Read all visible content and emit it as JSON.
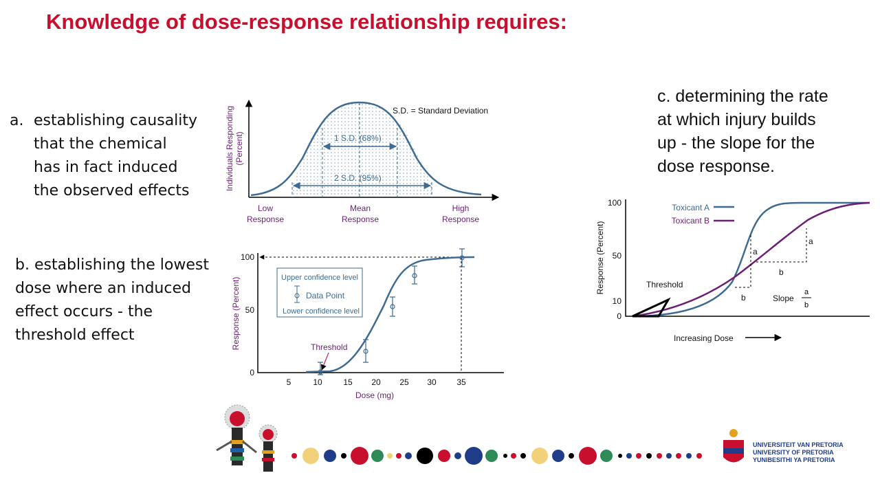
{
  "title": "Knowledge of dose-response relationship requires:",
  "items": {
    "a": {
      "marker": "a.",
      "lines": [
        "establishing causality",
        "that the chemical",
        "has in fact induced",
        "the observed effects"
      ]
    },
    "b": {
      "lines": [
        "b. establishing the lowest",
        "dose where an induced",
        "effect occurs - the",
        "threshold effect"
      ]
    },
    "c": {
      "lines": [
        "c. determining the rate",
        "at which injury builds",
        "up - the slope for the",
        "dose response."
      ]
    }
  },
  "figure_a": {
    "y_label": [
      "Individuals Responding",
      "(Percent)"
    ],
    "note": "S.D. = Standard Deviation",
    "sd1": "1 S.D. (68%)",
    "sd2": "2 S.D. (95%)",
    "x_labels": [
      [
        "Low",
        "Response"
      ],
      [
        "Mean",
        "Response"
      ],
      [
        "High",
        "Response"
      ]
    ]
  },
  "figure_b": {
    "y_label": "Response (Percent)",
    "x_label": "Dose (mg)",
    "yticks": [
      100,
      50,
      0
    ],
    "xticks": [
      5,
      10,
      15,
      20,
      25,
      30,
      35
    ],
    "legend": [
      "Upper confidence level",
      "Data Point",
      "Lower confidence level"
    ],
    "threshold": "Threshold"
  },
  "figure_c": {
    "y_label": "Response (Percent)",
    "x_label": "Increasing Dose",
    "yticks": [
      100,
      50,
      10,
      0
    ],
    "legend": [
      "Toxicant A",
      "Toxicant B"
    ],
    "threshold": "Threshold",
    "a_labels": [
      "a",
      "a"
    ],
    "b_labels": [
      "b",
      "b"
    ],
    "slope": "Slope",
    "slope_num": "a",
    "slope_den": "b"
  },
  "logo": [
    "UNIVERSITEIT VAN PRETORIA",
    "UNIVERSITY OF PRETORIA",
    "YUNIBESITHI YA PRETORIA"
  ]
}
